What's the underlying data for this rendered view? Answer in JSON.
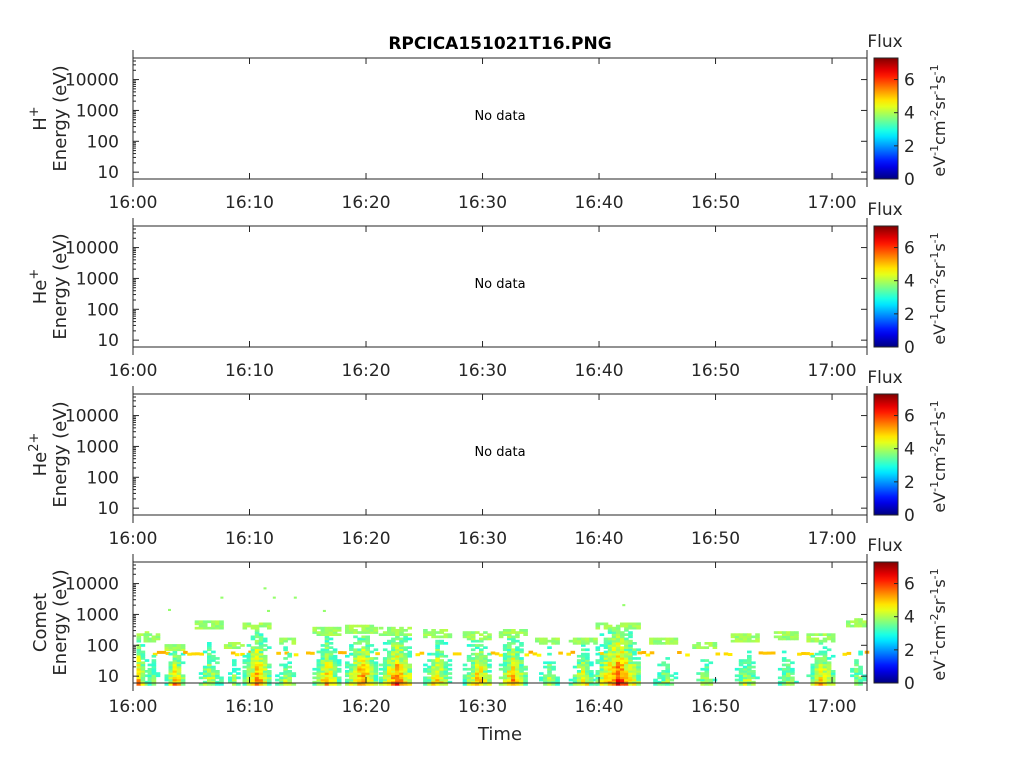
{
  "figure": {
    "title": "RPCICA151021T16.PNG",
    "xlabel": "Time"
  },
  "colorbar": {
    "title": "Flux",
    "label_base": "eV",
    "label_parts": [
      {
        "t": "eV",
        "s": false
      },
      {
        "t": "-1",
        "s": true
      },
      {
        "t": "cm",
        "s": false
      },
      {
        "t": "-2",
        "s": true
      },
      {
        "t": "sr",
        "s": false
      },
      {
        "t": "-1",
        "s": true
      },
      {
        "t": "s",
        "s": false
      },
      {
        "t": "-1",
        "s": true
      }
    ],
    "ticks": [
      "0",
      "2",
      "4",
      "6"
    ],
    "range": [
      0,
      7.3
    ],
    "colormap": "jet"
  },
  "time_ticks": [
    "16:00",
    "16:10",
    "16:20",
    "16:30",
    "16:40",
    "16:50",
    "17:00"
  ],
  "energy_ticks": [
    "10",
    "100",
    "1000",
    "10000"
  ],
  "panels": [
    {
      "species_main": "H",
      "species_sup": "+",
      "ylabel": "Energy (eV)",
      "message": "No data",
      "has_data": false
    },
    {
      "species_main": "He",
      "species_sup": "+",
      "ylabel": "Energy (eV)",
      "message": "No data",
      "has_data": false
    },
    {
      "species_main": "He",
      "species_sup": "2+",
      "ylabel": "Energy (eV)",
      "message": "No data",
      "has_data": false
    },
    {
      "species_main": "Comet",
      "species_sup": "",
      "ylabel": "Energy (eV)",
      "message": "",
      "has_data": true
    }
  ],
  "chart_data": {
    "type": "heatmap",
    "title": "RPCICA151021T16.PNG",
    "xlabel": "Time",
    "ylabel": "Energy (eV)",
    "x_range": [
      "16:00",
      "17:03"
    ],
    "y_scale": "log",
    "y_range": [
      6,
      50000
    ],
    "color_label": "Flux",
    "color_range": [
      0,
      7.3
    ],
    "bursts": [
      {
        "t": 0.3,
        "w": 0.7,
        "f": 6.0,
        "top": 300
      },
      {
        "t": 1.5,
        "w": 0.6,
        "f": 4.8,
        "top": 250
      },
      {
        "t": 3.5,
        "w": 0.8,
        "f": 6.2,
        "top": 120
      },
      {
        "t": 6.5,
        "w": 1.2,
        "f": 5.0,
        "top": 700
      },
      {
        "t": 8.5,
        "w": 0.7,
        "f": 4.5,
        "top": 150
      },
      {
        "t": 10.5,
        "w": 1.1,
        "f": 6.3,
        "top": 600
      },
      {
        "t": 13.0,
        "w": 0.8,
        "f": 5.2,
        "top": 200
      },
      {
        "t": 16.5,
        "w": 1.1,
        "f": 6.0,
        "top": 400
      },
      {
        "t": 19.5,
        "w": 1.3,
        "f": 6.4,
        "top": 500
      },
      {
        "t": 22.5,
        "w": 1.4,
        "f": 6.5,
        "top": 400
      },
      {
        "t": 26.0,
        "w": 1.1,
        "f": 5.8,
        "top": 350
      },
      {
        "t": 29.5,
        "w": 1.2,
        "f": 6.0,
        "top": 300
      },
      {
        "t": 32.5,
        "w": 1.1,
        "f": 6.3,
        "top": 350
      },
      {
        "t": 35.5,
        "w": 1.0,
        "f": 4.8,
        "top": 200
      },
      {
        "t": 38.5,
        "w": 1.1,
        "f": 5.5,
        "top": 200
      },
      {
        "t": 41.5,
        "w": 1.8,
        "f": 6.8,
        "top": 600
      },
      {
        "t": 45.5,
        "w": 1.2,
        "f": 4.6,
        "top": 200
      },
      {
        "t": 49.0,
        "w": 1.0,
        "f": 4.8,
        "top": 150
      },
      {
        "t": 52.5,
        "w": 1.2,
        "f": 5.0,
        "top": 250
      },
      {
        "t": 56.0,
        "w": 1.0,
        "f": 4.8,
        "top": 300
      },
      {
        "t": 59.0,
        "w": 1.2,
        "f": 5.8,
        "top": 250
      },
      {
        "t": 62.0,
        "w": 0.8,
        "f": 4.6,
        "top": 800
      }
    ],
    "sparse_points": [
      {
        "t": 3.0,
        "e": 1400,
        "f": 3.8
      },
      {
        "t": 7.5,
        "e": 3500,
        "f": 3.8
      },
      {
        "t": 11.2,
        "e": 7000,
        "f": 3.8
      },
      {
        "t": 11.5,
        "e": 1300,
        "f": 3.8
      },
      {
        "t": 12.0,
        "e": 3500,
        "f": 3.8
      },
      {
        "t": 13.8,
        "e": 3500,
        "f": 3.8
      },
      {
        "t": 16.3,
        "e": 1300,
        "f": 3.8
      },
      {
        "t": 42.0,
        "e": 2000,
        "f": 3.8
      }
    ]
  }
}
